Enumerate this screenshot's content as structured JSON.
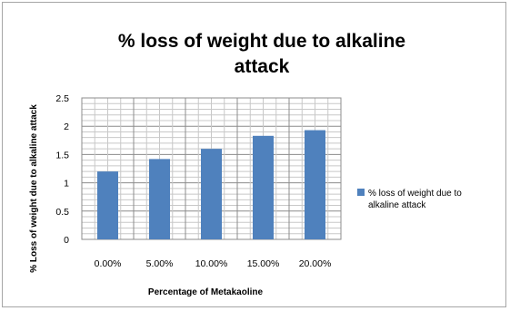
{
  "chart_data": {
    "type": "bar",
    "title_lines": [
      "% loss of weight due to alkaline",
      "attack"
    ],
    "xlabel": "Percentage  of Metakaoline",
    "ylabel": "% Loss of weight due to alkaline attack",
    "categories": [
      "0.00%",
      "5.00%",
      "10.00%",
      "15.00%",
      "20.00%"
    ],
    "series": [
      {
        "name_lines": [
          "% loss of weight due to",
          "alkaline attack"
        ],
        "values": [
          1.2,
          1.42,
          1.6,
          1.83,
          1.93
        ],
        "color": "#4f81bd"
      }
    ],
    "ylim": [
      0,
      2.5
    ],
    "yticks": [
      "0",
      "0.5",
      "1",
      "1.5",
      "2",
      "2.5"
    ],
    "grid": true,
    "legend_position": "right"
  }
}
